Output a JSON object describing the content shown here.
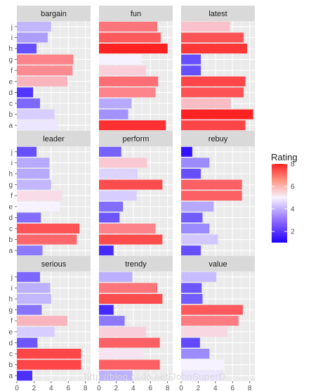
{
  "chart_data": {
    "type": "bar",
    "orientation": "horizontal",
    "facet_layout": "3x3 grid",
    "categories": [
      "a",
      "b",
      "c",
      "d",
      "e",
      "f",
      "g",
      "h",
      "i",
      "j"
    ],
    "xticks": [
      0,
      2,
      4,
      6,
      8
    ],
    "xlim": [
      0,
      8.6
    ],
    "grid": true,
    "legend": {
      "title": "Rating",
      "placement": "right",
      "ticks": [
        2,
        4,
        6,
        8
      ],
      "range": [
        1,
        8
      ]
    },
    "color_scale": {
      "low": "#2200ff",
      "mid": "#f7f2ff",
      "high": "#ff2222",
      "midpoint": 5
    },
    "panels": [
      {
        "name": "bargain",
        "values": [
          4.8,
          4.4,
          2.7,
          1.9,
          5.9,
          6.5,
          6.6,
          2.3,
          3.6,
          4.0
        ]
      },
      {
        "name": "fun",
        "values": [
          7.8,
          3.4,
          3.8,
          6.6,
          6.9,
          5.5,
          5.0,
          8.0,
          7.2,
          6.8
        ]
      },
      {
        "name": "latest",
        "values": [
          7.5,
          8.4,
          5.8,
          7.3,
          7.5,
          2.3,
          2.3,
          7.7,
          7.3,
          5.7
        ]
      },
      {
        "name": "leader",
        "values": [
          3.0,
          7.0,
          7.3,
          2.8,
          5.0,
          5.3,
          4.0,
          3.8,
          3.8,
          2.3
        ]
      },
      {
        "name": "perform",
        "values": [
          1.7,
          7.4,
          6.6,
          2.4,
          2.8,
          4.4,
          7.4,
          4.5,
          5.6,
          2.6
        ]
      },
      {
        "name": "rebuy",
        "values": [
          2.3,
          4.3,
          3.3,
          2.5,
          3.8,
          7.1,
          7.1,
          2.3,
          3.3,
          1.3
        ]
      },
      {
        "name": "serious",
        "values": [
          1.8,
          7.5,
          7.5,
          2.4,
          4.4,
          5.9,
          2.9,
          4.0,
          3.9,
          2.7
        ]
      },
      {
        "name": "trendy",
        "values": [
          3.9,
          7.1,
          5.2,
          7.1,
          5.5,
          3.0,
          1.7,
          7.4,
          6.8,
          3.9
        ]
      },
      {
        "name": "value",
        "values": [
          4.8,
          5.0,
          3.3,
          2.2,
          5.4,
          6.7,
          7.2,
          2.5,
          2.4,
          4.1
        ]
      }
    ],
    "watermark": "http://blog.csdn.net/JohnSuperD"
  }
}
